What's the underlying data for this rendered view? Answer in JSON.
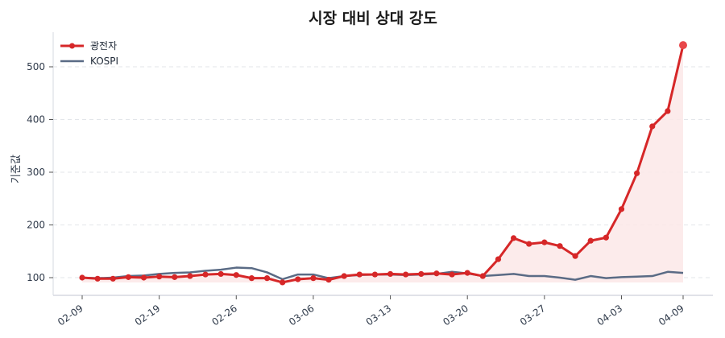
{
  "chart_data": {
    "type": "line",
    "title": "시장 대비 상대 강도",
    "xlabel": "",
    "ylabel": "기준값",
    "ylim": [
      70,
      565
    ],
    "yticks": [
      100,
      200,
      300,
      400,
      500
    ],
    "grid": {
      "y": true,
      "x": false,
      "style": "dashed"
    },
    "legend_position": "upper left",
    "x_tick_labels": [
      "02-09",
      "02-19",
      "02-26",
      "03-06",
      "03-13",
      "03-20",
      "03-27",
      "04-03",
      "04-09"
    ],
    "x_tick_indices": [
      0,
      5,
      10,
      15,
      20,
      25,
      30,
      35,
      39
    ],
    "n_points": 40,
    "series": [
      {
        "name": "광전자",
        "color": "#d62728",
        "marker": "circle",
        "fill": "#fbe7e7",
        "values": [
          100,
          98,
          98,
          101,
          100,
          102,
          101,
          103,
          106,
          107,
          105,
          99,
          99,
          91,
          97,
          99,
          96,
          103,
          106,
          106,
          107,
          106,
          107,
          108,
          106,
          109,
          103,
          135,
          175,
          164,
          167,
          160,
          141,
          170,
          176,
          230,
          298,
          387,
          416,
          541
        ]
      },
      {
        "name": "KOSPI",
        "color": "#5a6b85",
        "marker": "none",
        "values": [
          100,
          99,
          100,
          103,
          104,
          107,
          109,
          110,
          113,
          115,
          119,
          118,
          110,
          97,
          106,
          106,
          99,
          103,
          105,
          106,
          106,
          105,
          106,
          107,
          111,
          108,
          103,
          105,
          107,
          103,
          103,
          100,
          96,
          103,
          99,
          101,
          102,
          103,
          111,
          109
        ]
      }
    ]
  }
}
